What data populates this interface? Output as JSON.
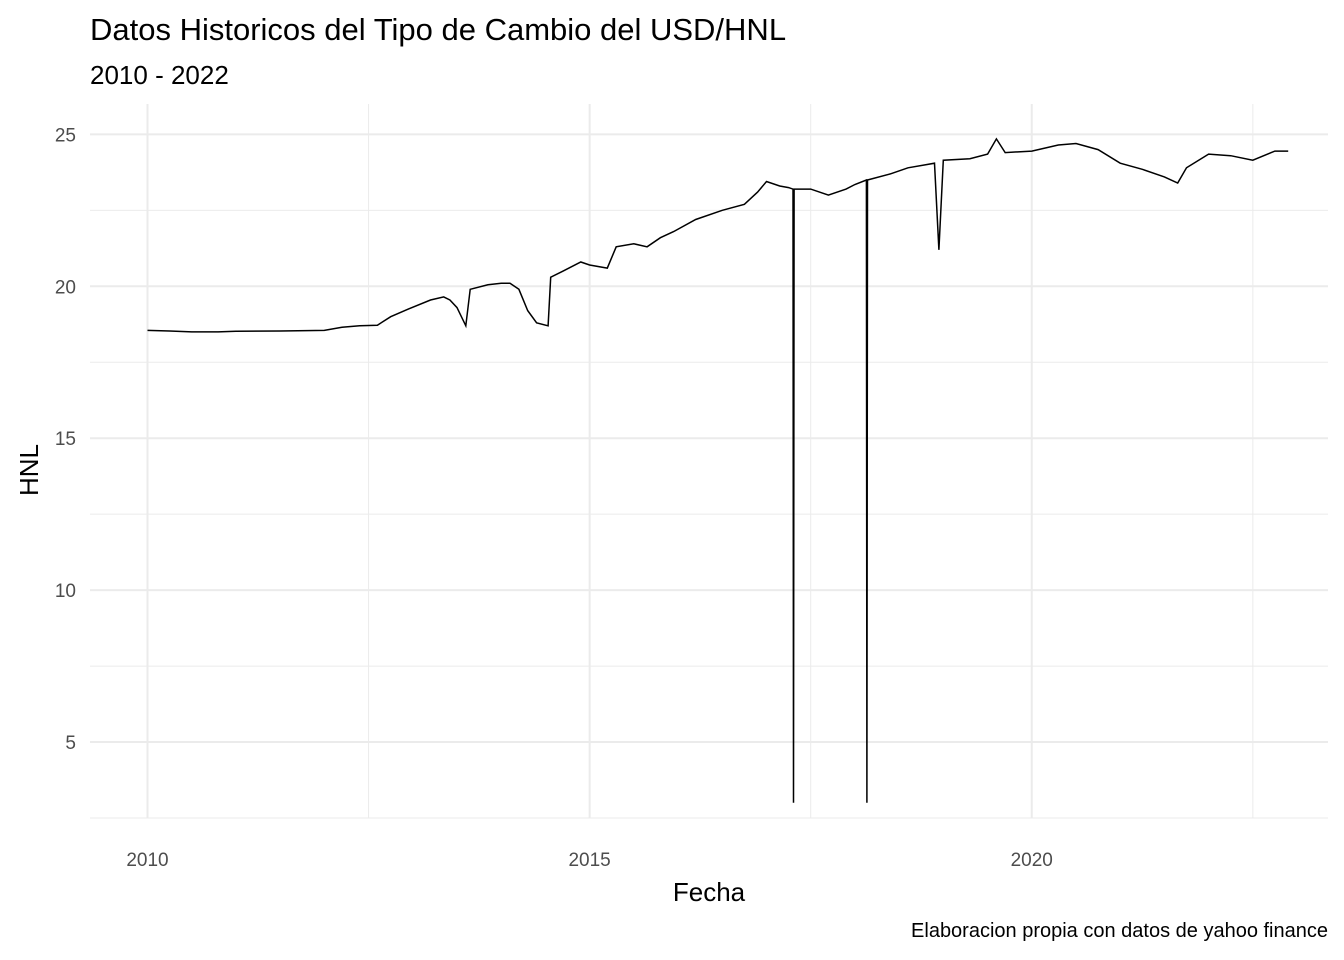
{
  "chart_data": {
    "type": "line",
    "title": "Datos Historicos del Tipo de Cambio del USD/HNL",
    "subtitle": "2010 - 2022",
    "caption": "Elaboracion propia con datos de yahoo finance",
    "xlabel": "Fecha",
    "ylabel": "HNL",
    "x_ticks": [
      2010,
      2015,
      2020
    ],
    "y_ticks": [
      5,
      10,
      15,
      20,
      25
    ],
    "xlim": [
      2009.35,
      2023.35
    ],
    "ylim": [
      2.5,
      26.0
    ],
    "grid": true,
    "line_color": "#000000",
    "series": [
      {
        "points": [
          [
            2010.0,
            18.55
          ],
          [
            2010.25,
            18.53
          ],
          [
            2010.5,
            18.5
          ],
          [
            2010.8,
            18.5
          ],
          [
            2011.0,
            18.52
          ],
          [
            2011.5,
            18.53
          ],
          [
            2012.0,
            18.55
          ],
          [
            2012.2,
            18.65
          ],
          [
            2012.4,
            18.7
          ],
          [
            2012.6,
            18.72
          ],
          [
            2012.75,
            19.0
          ],
          [
            2012.95,
            19.25
          ],
          [
            2013.2,
            19.55
          ],
          [
            2013.35,
            19.65
          ],
          [
            2013.42,
            19.55
          ],
          [
            2013.5,
            19.3
          ],
          [
            2013.6,
            18.7
          ],
          [
            2013.65,
            19.9
          ],
          [
            2013.85,
            20.05
          ],
          [
            2014.0,
            20.1
          ],
          [
            2014.1,
            20.1
          ],
          [
            2014.2,
            19.9
          ],
          [
            2014.3,
            19.2
          ],
          [
            2014.4,
            18.8
          ],
          [
            2014.53,
            18.7
          ],
          [
            2014.56,
            20.3
          ],
          [
            2014.7,
            20.5
          ],
          [
            2014.9,
            20.8
          ],
          [
            2015.0,
            20.7
          ],
          [
            2015.2,
            20.6
          ],
          [
            2015.3,
            21.3
          ],
          [
            2015.5,
            21.4
          ],
          [
            2015.65,
            21.3
          ],
          [
            2015.8,
            21.6
          ],
          [
            2015.95,
            21.8
          ],
          [
            2016.2,
            22.2
          ],
          [
            2016.5,
            22.5
          ],
          [
            2016.75,
            22.7
          ],
          [
            2016.9,
            23.1
          ],
          [
            2017.0,
            23.45
          ],
          [
            2017.15,
            23.3
          ],
          [
            2017.25,
            23.25
          ],
          [
            2017.3,
            23.2
          ],
          [
            2017.306,
            3.0
          ],
          [
            2017.312,
            23.2
          ],
          [
            2017.5,
            23.2
          ],
          [
            2017.7,
            23.0
          ],
          [
            2017.9,
            23.2
          ],
          [
            2018.0,
            23.35
          ],
          [
            2018.13,
            23.5
          ],
          [
            2018.136,
            3.0
          ],
          [
            2018.142,
            23.5
          ],
          [
            2018.4,
            23.7
          ],
          [
            2018.6,
            23.9
          ],
          [
            2018.8,
            24.0
          ],
          [
            2018.9,
            24.05
          ],
          [
            2018.95,
            21.2
          ],
          [
            2019.0,
            24.15
          ],
          [
            2019.3,
            24.2
          ],
          [
            2019.5,
            24.35
          ],
          [
            2019.6,
            24.85
          ],
          [
            2019.7,
            24.4
          ],
          [
            2020.0,
            24.45
          ],
          [
            2020.3,
            24.65
          ],
          [
            2020.5,
            24.7
          ],
          [
            2020.75,
            24.5
          ],
          [
            2021.0,
            24.05
          ],
          [
            2021.25,
            23.85
          ],
          [
            2021.5,
            23.6
          ],
          [
            2021.65,
            23.4
          ],
          [
            2021.75,
            23.9
          ],
          [
            2022.0,
            24.35
          ],
          [
            2022.25,
            24.3
          ],
          [
            2022.5,
            24.15
          ],
          [
            2022.75,
            24.45
          ],
          [
            2022.9,
            24.45
          ]
        ]
      }
    ]
  }
}
